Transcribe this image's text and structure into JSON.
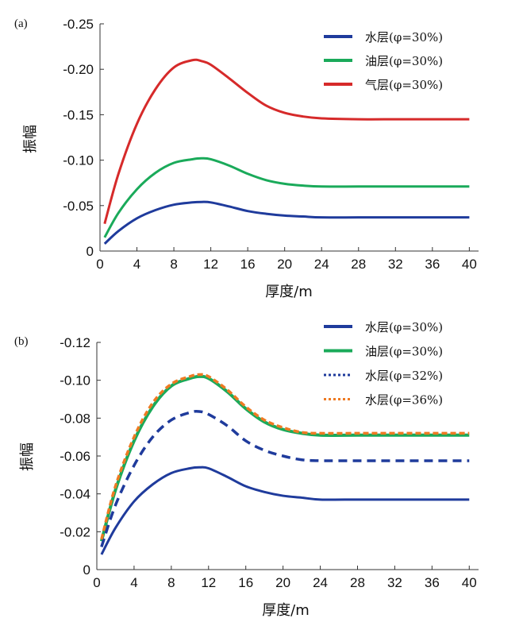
{
  "chart_data": [
    {
      "type": "line",
      "panel_label": "(a)",
      "xlabel": "厚度/m",
      "ylabel": "振幅",
      "xlim": [
        0,
        41
      ],
      "ylim": [
        0,
        -0.25
      ],
      "x_ticks": [
        "0",
        "4",
        "8",
        "12",
        "16",
        "20",
        "24",
        "28",
        "32",
        "36",
        "40"
      ],
      "y_ticks": [
        "0",
        "-0.05",
        "-0.10",
        "-0.15",
        "-0.20",
        "-0.25"
      ],
      "legend_position": "top-right",
      "series": [
        {
          "name": "水层(φ=30%)",
          "color": "#1f3b9c",
          "style": "solid",
          "x": [
            0.5,
            2,
            4,
            6,
            8,
            10,
            11,
            12,
            14,
            16,
            18,
            20,
            22,
            24,
            28,
            32,
            36,
            40
          ],
          "y": [
            -0.008,
            -0.022,
            -0.036,
            -0.045,
            -0.051,
            -0.0535,
            -0.054,
            -0.0535,
            -0.049,
            -0.044,
            -0.041,
            -0.039,
            -0.038,
            -0.037,
            -0.037,
            -0.037,
            -0.037,
            -0.037
          ]
        },
        {
          "name": "油层(φ=30%)",
          "color": "#1aaa5a",
          "style": "solid",
          "x": [
            0.5,
            2,
            4,
            6,
            8,
            10,
            11,
            12,
            14,
            16,
            18,
            20,
            22,
            24,
            28,
            32,
            36,
            40
          ],
          "y": [
            -0.015,
            -0.042,
            -0.068,
            -0.086,
            -0.097,
            -0.101,
            -0.102,
            -0.101,
            -0.094,
            -0.085,
            -0.078,
            -0.074,
            -0.072,
            -0.071,
            -0.071,
            -0.071,
            -0.071,
            -0.071
          ]
        },
        {
          "name": "气层(φ=30%)",
          "color": "#d62a2a",
          "style": "solid",
          "x": [
            0.5,
            2,
            4,
            6,
            8,
            10,
            11,
            12,
            14,
            16,
            18,
            20,
            22,
            24,
            28,
            32,
            36,
            40
          ],
          "y": [
            -0.03,
            -0.085,
            -0.14,
            -0.178,
            -0.202,
            -0.21,
            -0.209,
            -0.205,
            -0.19,
            -0.174,
            -0.16,
            -0.152,
            -0.148,
            -0.146,
            -0.145,
            -0.145,
            -0.145,
            -0.145
          ]
        }
      ]
    },
    {
      "type": "line",
      "panel_label": "(b)",
      "xlabel": "厚度/m",
      "ylabel": "振幅",
      "xlim": [
        0,
        41
      ],
      "ylim": [
        0,
        -0.12
      ],
      "x_ticks": [
        "0",
        "4",
        "8",
        "12",
        "16",
        "20",
        "24",
        "28",
        "32",
        "36",
        "40"
      ],
      "y_ticks": [
        "0",
        "-0.02",
        "-0.04",
        "-0.06",
        "-0.08",
        "-0.10",
        "-0.12"
      ],
      "legend_position": "top-right",
      "series": [
        {
          "name": "水层(φ=30%)",
          "color": "#1f3b9c",
          "style": "solid",
          "x": [
            0.5,
            2,
            4,
            6,
            8,
            10,
            11,
            12,
            14,
            16,
            18,
            20,
            22,
            24,
            28,
            32,
            36,
            40
          ],
          "y": [
            -0.008,
            -0.022,
            -0.036,
            -0.045,
            -0.051,
            -0.0535,
            -0.054,
            -0.0535,
            -0.049,
            -0.044,
            -0.041,
            -0.039,
            -0.038,
            -0.037,
            -0.037,
            -0.037,
            -0.037,
            -0.037
          ]
        },
        {
          "name": "油层(φ=30%)",
          "color": "#1aaa5a",
          "style": "solid",
          "x": [
            0.5,
            2,
            4,
            6,
            8,
            10,
            11,
            12,
            14,
            16,
            18,
            20,
            22,
            24,
            28,
            32,
            36,
            40
          ],
          "y": [
            -0.015,
            -0.042,
            -0.068,
            -0.086,
            -0.097,
            -0.101,
            -0.102,
            -0.101,
            -0.094,
            -0.085,
            -0.078,
            -0.074,
            -0.072,
            -0.071,
            -0.071,
            -0.071,
            -0.071,
            -0.071
          ]
        },
        {
          "name": "水层(φ=32%)",
          "color": "#1f3b9c",
          "style": "dashed",
          "x": [
            0.5,
            2,
            4,
            6,
            8,
            10,
            11,
            12,
            14,
            16,
            18,
            20,
            22,
            24,
            28,
            32,
            36,
            40
          ],
          "y": [
            -0.012,
            -0.034,
            -0.055,
            -0.07,
            -0.079,
            -0.083,
            -0.0835,
            -0.082,
            -0.076,
            -0.068,
            -0.063,
            -0.06,
            -0.058,
            -0.0575,
            -0.0575,
            -0.0575,
            -0.0575,
            -0.0575
          ]
        },
        {
          "name": "水层(φ=36%)",
          "color": "#ee7a22",
          "style": "dashed",
          "x": [
            0.5,
            2,
            4,
            6,
            8,
            10,
            11,
            12,
            14,
            16,
            18,
            20,
            22,
            24,
            28,
            32,
            36,
            40
          ],
          "y": [
            -0.016,
            -0.044,
            -0.07,
            -0.088,
            -0.098,
            -0.102,
            -0.103,
            -0.102,
            -0.095,
            -0.086,
            -0.079,
            -0.075,
            -0.0725,
            -0.072,
            -0.072,
            -0.072,
            -0.072,
            -0.072
          ]
        }
      ]
    }
  ]
}
